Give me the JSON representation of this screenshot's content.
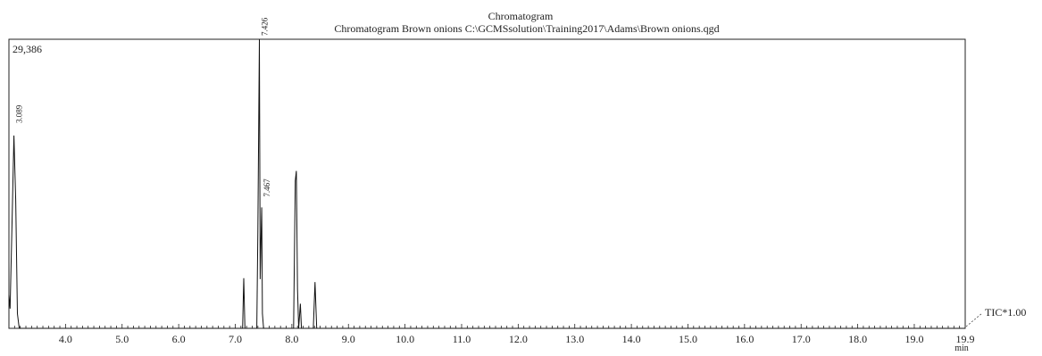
{
  "chart_data": {
    "type": "line",
    "title": "Chromatogram",
    "subtitle": "Chromatogram Brown onions C:\\GCMSsolution\\Training2017\\Adams\\Brown onions.qgd",
    "y_max_label": "29,386",
    "y_max_value": 29386,
    "xlabel": "min",
    "trace_label": "TIC*1.00",
    "xlim": [
      3.0,
      19.9
    ],
    "ylim": [
      0,
      29386
    ],
    "grid": false,
    "x_ticks": [
      "4.0",
      "5.0",
      "6.0",
      "7.0",
      "8.0",
      "9.0",
      "10.0",
      "11.0",
      "12.0",
      "13.0",
      "14.0",
      "15.0",
      "16.0",
      "17.0",
      "18.0",
      "19.0",
      "19.9"
    ],
    "x_tick_values": [
      4.0,
      5.0,
      6.0,
      7.0,
      8.0,
      9.0,
      10.0,
      11.0,
      12.0,
      13.0,
      14.0,
      15.0,
      16.0,
      17.0,
      18.0,
      19.0,
      19.9
    ],
    "peak_labels": [
      {
        "x": 3.089,
        "y": 20500,
        "text": "3.089"
      },
      {
        "x": 7.426,
        "y": 29386,
        "text": "7.426"
      },
      {
        "x": 7.467,
        "y": 13000,
        "text": "7.467"
      }
    ],
    "series": [
      {
        "x": [
          3.0,
          3.02,
          3.06,
          3.089,
          3.12,
          3.15,
          3.18,
          3.2,
          3.3,
          7.1,
          7.13,
          7.15,
          7.17,
          7.38,
          7.4,
          7.426,
          7.44,
          7.455,
          7.467,
          7.48,
          7.5,
          8.03,
          8.06,
          8.08,
          8.1,
          8.12,
          8.15,
          8.17,
          8.2,
          8.38,
          8.41,
          8.44,
          8.6,
          19.9
        ],
        "y": [
          3400,
          2000,
          12000,
          19600,
          13000,
          1500,
          100,
          0,
          0,
          0,
          0,
          5100,
          0,
          0,
          10000,
          29386,
          5000,
          9000,
          12300,
          1500,
          0,
          0,
          15000,
          16000,
          4000,
          0,
          2500,
          0,
          0,
          0,
          4700,
          0,
          0,
          0
        ]
      }
    ]
  }
}
